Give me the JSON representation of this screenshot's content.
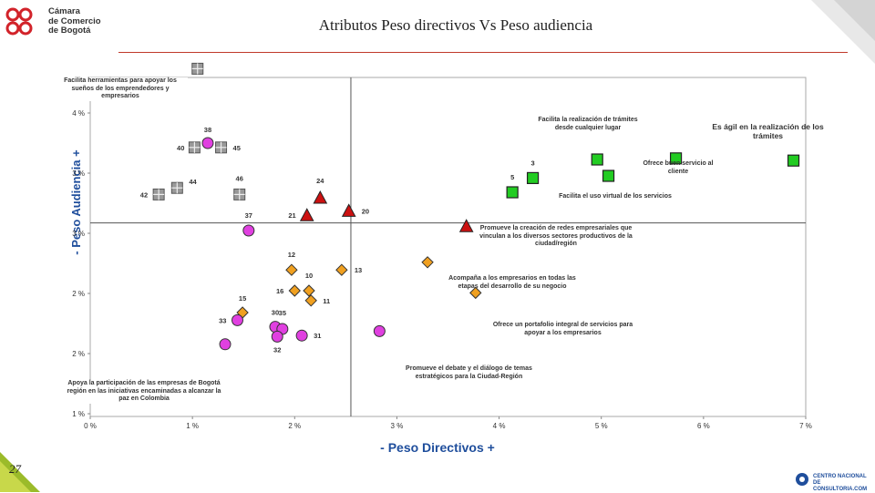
{
  "header": {
    "org_lines": [
      "Cámara",
      "de Comercio",
      "de Bogotá"
    ],
    "title": "Atributos Peso directivos Vs Peso audiencia"
  },
  "page_number": "27",
  "footer": {
    "org_lines": [
      "CENTRO NACIONAL",
      "DE CONSULTORIA.COM"
    ]
  },
  "colors": {
    "accent_rule": "#c0392b",
    "axis_label": "#1f4e9c",
    "square": "#22cc22",
    "triangle": "#cc1111",
    "diamond": "#f0a020",
    "circle": "#e040e0",
    "gray_square": "#999999"
  },
  "chart_data": {
    "type": "scatter",
    "xlabel": "- Peso Directivos +",
    "ylabel": "- Peso Audiencia +",
    "x_ticks": [
      "0 %",
      "1 %",
      "2 %",
      "3 %",
      "4 %",
      "5 %",
      "6 %",
      "7 %"
    ],
    "y_ticks": [
      "1 %",
      "2 %",
      "2 %",
      "3 %",
      "3 %",
      "4 %"
    ],
    "xlim": [
      0,
      7
    ],
    "ylim": [
      1,
      4.1
    ],
    "divider": {
      "x": 2.55,
      "y": 2.77
    },
    "grid": false,
    "points": [
      {
        "shape": "gray_square",
        "x": 1.05,
        "y": 4.18,
        "label": ""
      },
      {
        "shape": "circle",
        "x": 1.15,
        "y": 3.5,
        "label": "38"
      },
      {
        "shape": "gray_square",
        "x": 1.02,
        "y": 3.46,
        "label": "40"
      },
      {
        "shape": "gray_square",
        "x": 1.28,
        "y": 3.46,
        "label": "45"
      },
      {
        "shape": "gray_square",
        "x": 0.85,
        "y": 3.09,
        "label": "44"
      },
      {
        "shape": "gray_square",
        "x": 0.67,
        "y": 3.03,
        "label": "42"
      },
      {
        "shape": "gray_square",
        "x": 1.46,
        "y": 3.03,
        "label": "46"
      },
      {
        "shape": "triangle",
        "x": 2.25,
        "y": 3.0,
        "label": "24"
      },
      {
        "shape": "triangle",
        "x": 2.53,
        "y": 2.88,
        "label": "20"
      },
      {
        "shape": "triangle",
        "x": 2.12,
        "y": 2.84,
        "label": "21"
      },
      {
        "shape": "triangle",
        "x": 3.68,
        "y": 2.74,
        "label": ""
      },
      {
        "shape": "circle",
        "x": 1.55,
        "y": 2.7,
        "label": "37"
      },
      {
        "shape": "square",
        "x": 4.13,
        "y": 3.05,
        "label": "5"
      },
      {
        "shape": "square",
        "x": 4.33,
        "y": 3.18,
        "label": "3"
      },
      {
        "shape": "square",
        "x": 4.96,
        "y": 3.35,
        "label": ""
      },
      {
        "shape": "square",
        "x": 5.07,
        "y": 3.2,
        "label": ""
      },
      {
        "shape": "square",
        "x": 5.73,
        "y": 3.36,
        "label": ""
      },
      {
        "shape": "square",
        "x": 6.88,
        "y": 3.34,
        "label": ""
      },
      {
        "shape": "diamond",
        "x": 1.97,
        "y": 2.34,
        "label": "12"
      },
      {
        "shape": "diamond",
        "x": 2.46,
        "y": 2.34,
        "label": "13"
      },
      {
        "shape": "diamond",
        "x": 2.0,
        "y": 2.15,
        "label": "16"
      },
      {
        "shape": "diamond",
        "x": 2.14,
        "y": 2.15,
        "label": "10"
      },
      {
        "shape": "diamond",
        "x": 2.16,
        "y": 2.06,
        "label": "11"
      },
      {
        "shape": "diamond",
        "x": 1.49,
        "y": 1.95,
        "label": "15"
      },
      {
        "shape": "diamond",
        "x": 3.3,
        "y": 2.41,
        "label": ""
      },
      {
        "shape": "diamond",
        "x": 3.77,
        "y": 2.13,
        "label": ""
      },
      {
        "shape": "circle",
        "x": 1.44,
        "y": 1.88,
        "label": "33"
      },
      {
        "shape": "circle",
        "x": 1.81,
        "y": 1.82,
        "label": "30"
      },
      {
        "shape": "circle",
        "x": 1.88,
        "y": 1.8,
        "label": "35"
      },
      {
        "shape": "circle",
        "x": 2.07,
        "y": 1.74,
        "label": "31"
      },
      {
        "shape": "circle",
        "x": 1.83,
        "y": 1.73,
        "label": "32"
      },
      {
        "shape": "circle",
        "x": 1.32,
        "y": 1.66,
        "label": ""
      },
      {
        "shape": "circle",
        "x": 2.83,
        "y": 1.78,
        "label": ""
      }
    ],
    "annotations": [
      "Facilita herramientas para apoyar los sueños de los emprendedores y empresarios",
      "Facilita la realización de trámites desde cualquier lugar",
      "Es ágil en la realización de los trámites",
      "Ofrece buen servicio al cliente",
      "Facilita el uso virtual de los servicios",
      "Promueve la creación de redes empresariales que vinculan a los diversos sectores productivos de la ciudad/región",
      "Acompaña a los empresarios en todas las etapas del desarrollo de su negocio",
      "Ofrece un portafolio integral de servicios para apoyar a los empresarios",
      "Promueve el debate y el diálogo de temas estratégicos para la Ciudad-Región",
      "Apoya la participación de las empresas de Bogotá región en las iniciativas encaminadas a alcanzar la paz en Colombia"
    ]
  }
}
